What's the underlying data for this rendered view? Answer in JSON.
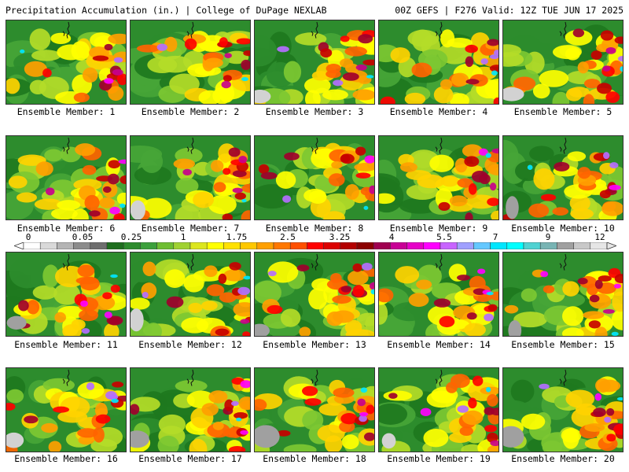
{
  "header": {
    "left": "Precipitation Accumulation (in.) | College of DuPage NEXLAB",
    "right": "00Z GEFS | F276 Valid: 12Z TUE JUN 17 2025"
  },
  "members": [
    "Ensemble Member: 1",
    "Ensemble Member: 2",
    "Ensemble Member: 3",
    "Ensemble Member: 4",
    "Ensemble Member: 5",
    "Ensemble Member: 6",
    "Ensemble Member: 7",
    "Ensemble Member: 8",
    "Ensemble Member: 9",
    "Ensemble Member: 10",
    "Ensemble Member: 11",
    "Ensemble Member: 12",
    "Ensemble Member: 13",
    "Ensemble Member: 14",
    "Ensemble Member: 15",
    "Ensemble Member: 16",
    "Ensemble Member: 17",
    "Ensemble Member: 18",
    "Ensemble Member: 19",
    "Ensemble Member: 20"
  ],
  "colorbar": {
    "labels": [
      "0",
      "0.05",
      "0.25",
      "1",
      "1.75",
      "2.5",
      "3.25",
      "4",
      "5.5",
      "7",
      "9",
      "12"
    ],
    "colors": [
      "#ffffff",
      "#d9d9d9",
      "#b4b4b4",
      "#8c8c8c",
      "#6e6e6e",
      "#1e6e1e",
      "#2d8c2d",
      "#3ca03c",
      "#6ebe32",
      "#a0d232",
      "#dce61e",
      "#ffff00",
      "#ffe100",
      "#ffc800",
      "#ffa000",
      "#ff7800",
      "#ff5000",
      "#ff0000",
      "#dc0000",
      "#b40000",
      "#8c0000",
      "#a00050",
      "#c80096",
      "#e600c8",
      "#ff00ff",
      "#c864ff",
      "#a0a0ff",
      "#64c8ff",
      "#00e6ff",
      "#00ffff",
      "#50d2d2",
      "#78b4b4",
      "#a0a0a0",
      "#c8c8c8",
      "#e6e6e6"
    ]
  },
  "field_palette": [
    "#d2d2d2",
    "#a0a0a0",
    "#1e781e",
    "#2d8c2d",
    "#46a537",
    "#7dc832",
    "#b4dc28",
    "#ffff00",
    "#ffd200",
    "#ffa000",
    "#ff6400",
    "#ff0000",
    "#c80000",
    "#a0002d",
    "#c8008c",
    "#ff00ff",
    "#b46eff",
    "#00e6ff"
  ]
}
